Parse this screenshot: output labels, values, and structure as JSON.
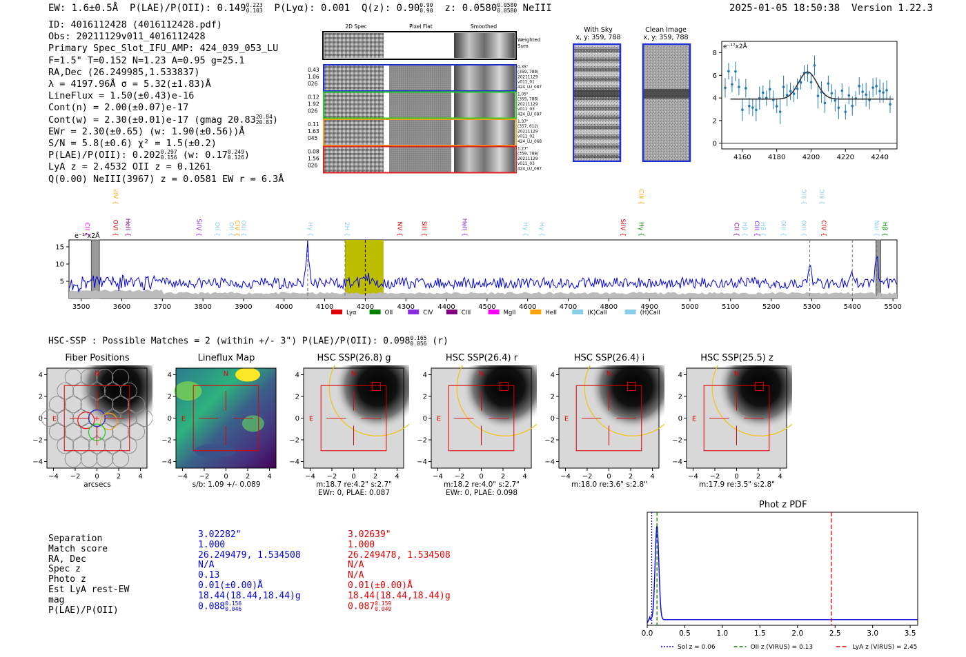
{
  "header": {
    "ew": "EW: 1.6±0.5Å",
    "plae": "P(LAE)/P(OII): 0.149",
    "plae_hi": "0.223",
    "plae_lo": "0.103",
    "plya": "P(Lyα): 0.001",
    "qz": "Q(z): 0.90",
    "qz_hi": "0.90",
    "qz_lo": "0.90",
    "z": "z: 0.0580",
    "z_hi": "0.0580",
    "z_lo": "0.0580",
    "line": "NeIII",
    "datetime": "2025-01-05 18:50:38",
    "version": "Version 1.22.3"
  },
  "info": {
    "id": "ID: 4016112428 (4016112428.pdf)",
    "obs": "Obs: 20211129v011_4016112428",
    "primary": "Primary Spec_Slot_IFU_AMP: 424_039_053_LU",
    "params": "F=1.5\"  T=0.152  N=1.23  A=0.95  g=25.1",
    "radec": "RA,Dec (26.249985,1.533837)",
    "lambda": "λ = 4197.96Å  σ = 5.32(±1.83)Å",
    "lineflux": "LineFlux = 1.50(±0.43)e-16",
    "contn": "Cont(n) = 2.00(±0.07)e-17",
    "contw": "Cont(w) = 2.30(±0.01)e-17 (gmag 20.83",
    "contw_hi": "20.84",
    "contw_lo": "20.83",
    "contw_close": ")",
    "ewr": "EWr = 2.30(±0.65) (w: 1.90(±0.56))Å",
    "sn": "S/N = 5.8(±0.6)  χ² = 1.5(±0.2)",
    "plae": "P(LAE)/P(OII): 0.202",
    "plae_hi": "0.297",
    "plae_lo": "0.156",
    "plae_w": "(w: 0.17",
    "plae_w_hi": "0.249",
    "plae_w_lo": "0.126",
    "plae_w_close": ")",
    "lya": "LyA z = 2.4532  OII z = 0.1261",
    "q": "Q(0.00) NeIII(3967) z = 0.0581  EW r = 6.3Å"
  },
  "cutouts": {
    "col_2d": "2D Spec",
    "col_flat": "Pixel Flat",
    "col_smooth": "Smoothed",
    "weighted": "Weighted Sum",
    "rows": [
      {
        "color": "#1f2fd6",
        "left": [
          "0.43",
          "1.06",
          "026"
        ],
        "right": [
          "0.35\"",
          "(359, 788)",
          "20211129",
          "v011_01",
          "424_LU_087"
        ]
      },
      {
        "color": "#22cc22",
        "left": [
          "0.12",
          "1.92",
          "026"
        ],
        "right": [
          "1.05\"",
          "(359, 788)",
          "20211129",
          "v011_03",
          "424_LU_087"
        ]
      },
      {
        "color": "#f0a020",
        "left": [
          "0.11",
          "1.63",
          "045"
        ],
        "right": [
          "1.37\"",
          "(357, 612)",
          "20211129",
          "v011_02",
          "424_LU_068"
        ]
      },
      {
        "color": "#e02020",
        "left": [
          "0.08",
          "1.56",
          "026"
        ],
        "right": [
          "1.27\"",
          "(359, 788)",
          "20211129",
          "v011_03",
          "424_LU_087"
        ]
      }
    ]
  },
  "sky": {
    "with_sky": "With Sky",
    "with_sky_xy": "x, y: 359, 788",
    "clean": "Clean Image",
    "clean_xy": "x, y: 359, 788"
  },
  "zoom": {
    "unit": "e⁻¹⁷x2Å",
    "xticks": [
      "4160",
      "4180",
      "4200",
      "4220",
      "4240"
    ],
    "yticks": [
      "0",
      "2",
      "4",
      "6",
      "8"
    ]
  },
  "spectrum": {
    "unit": "e⁻¹⁷x2Å",
    "xticks": [
      "3500",
      "3600",
      "3700",
      "3800",
      "3900",
      "4000",
      "4100",
      "4200",
      "4300",
      "4400",
      "4500",
      "4600",
      "4700",
      "4800",
      "4900",
      "5000",
      "5100",
      "5200",
      "5300",
      "5400",
      "5500"
    ],
    "yticks": [
      "5",
      "10",
      "15"
    ],
    "legend": [
      {
        "label": "Lyα",
        "color": "#e00000"
      },
      {
        "label": "OII",
        "color": "#008000"
      },
      {
        "label": "CIV",
        "color": "#8a2be2"
      },
      {
        "label": "CIII",
        "color": "#800080"
      },
      {
        "label": "MgII",
        "color": "#ff00ff"
      },
      {
        "label": "HeII",
        "color": "#ffa500"
      },
      {
        "label": "(K)CaII",
        "color": "#87ceeb"
      },
      {
        "label": "(H)CaII",
        "color": "#87ceeb"
      }
    ],
    "line_labels": [
      {
        "t": "CII",
        "c": "#ff00ff",
        "w": 3510,
        "row": 1
      },
      {
        "t": "SiIV",
        "c": "#ffa500",
        "w": 3580,
        "row": 0
      },
      {
        "t": "OVI",
        "c": "#e00000",
        "w": 3580,
        "row": 1
      },
      {
        "t": "HeII",
        "c": "#800080",
        "w": 3610,
        "row": 1
      },
      {
        "t": "SiIV",
        "c": "#8a2be2",
        "w": 3785,
        "row": 1
      },
      {
        "t": "OII",
        "c": "#87ceeb",
        "w": 3830,
        "row": 1
      },
      {
        "t": "OII",
        "c": "#87ceeb",
        "w": 3865,
        "row": 1
      },
      {
        "t": "CIV",
        "c": "#ffa500",
        "w": 3880,
        "row": 1
      },
      {
        "t": "OIII",
        "c": "#87ceeb",
        "w": 3895,
        "row": 1
      },
      {
        "t": "Hγ",
        "c": "#87ceeb",
        "w": 4060,
        "row": 1
      },
      {
        "t": "2H",
        "c": "#87ceeb",
        "w": 4150,
        "row": 1
      },
      {
        "t": "NV",
        "c": "#e00000",
        "w": 4280,
        "row": 1
      },
      {
        "t": "SiII",
        "c": "#e00000",
        "w": 4340,
        "row": 1
      },
      {
        "t": "HeII",
        "c": "#8a2be2",
        "w": 4440,
        "row": 1
      },
      {
        "t": "Hγ",
        "c": "#87ceeb",
        "w": 4590,
        "row": 1
      },
      {
        "t": "Hγ",
        "c": "#87ceeb",
        "w": 4630,
        "row": 1
      },
      {
        "t": "SiIV",
        "c": "#e00000",
        "w": 4830,
        "row": 1
      },
      {
        "t": "Hγ",
        "c": "#008000",
        "w": 4875,
        "row": 1
      },
      {
        "t": "CIII",
        "c": "#ffa500",
        "w": 4875,
        "row": 0
      },
      {
        "t": "CII",
        "c": "#800080",
        "w": 5110,
        "row": 1
      },
      {
        "t": "Hβ",
        "c": "#87ceeb",
        "w": 5130,
        "row": 1
      },
      {
        "t": "CIII",
        "c": "#8a2be2",
        "w": 5160,
        "row": 1
      },
      {
        "t": "Hβ",
        "c": "#87ceeb",
        "w": 5175,
        "row": 1
      },
      {
        "t": "OIII",
        "c": "#87ceeb",
        "w": 5225,
        "row": 1
      },
      {
        "t": "OIII",
        "c": "#87ceeb",
        "w": 5275,
        "row": 1
      },
      {
        "t": "OIII",
        "c": "#87ceeb",
        "w": 5275,
        "row": 0
      },
      {
        "t": "OIII",
        "c": "#87ceeb",
        "w": 5320,
        "row": 0
      },
      {
        "t": "CIV",
        "c": "#e00000",
        "w": 5325,
        "row": 1
      },
      {
        "t": "NaI",
        "c": "#87ceeb",
        "w": 5455,
        "row": 1
      },
      {
        "t": "Hβ",
        "c": "#008000",
        "w": 5475,
        "row": 1
      }
    ]
  },
  "hsc": {
    "summary": "HSC-SSP : Possible Matches = 2 (within +/- 3\")  P(LAE)/P(OII): 0.098",
    "summary_hi": "0.165",
    "summary_lo": "0.056",
    "summary_tail": "(r)",
    "panels": [
      {
        "title": "Fiber Positions",
        "cap1": "arcsecs",
        "cap2": ""
      },
      {
        "title": "Lineflux Map",
        "cap1": "s/b: 1.09 +/- 0.089",
        "cap2": ""
      },
      {
        "title": "HSC SSP(26.8) g",
        "cap1": "m:18.7  re:4.2\"  s:2.7\"",
        "cap2": "EWr: 0, PLAE: 0.087"
      },
      {
        "title": "HSC SSP(26.4) r",
        "cap1": "m:18.2  re:4.0\"  s:2.7\"",
        "cap2": "EWr: 0, PLAE: 0.098"
      },
      {
        "title": "HSC SSP(26.4) i",
        "cap1": "m:18.0  re:3.6\"  s:2.8\"",
        "cap2": ""
      },
      {
        "title": "HSC SSP(25.5) z",
        "cap1": "m:17.9  re:3.5\"  s:2.8\"",
        "cap2": ""
      }
    ],
    "axticks": [
      "−4",
      "−2",
      "0",
      "2",
      "4"
    ],
    "labels": {
      "n": "N",
      "e": "E"
    }
  },
  "matches": {
    "labels": [
      "Separation",
      "Match score",
      "RA, Dec",
      "Spec z",
      "Photo z",
      "Est LyA rest-EW",
      "mag",
      "P(LAE)/P(OII)"
    ],
    "m1": {
      "sep": "3.02282\"",
      "score": "1.000",
      "radec": "26.249479, 1.534508",
      "specz": "N/A",
      "photz": "0.13",
      "ew": "0.01(±0.00)Å",
      "mag": "18.44(18.44,18.44)g",
      "plae": "0.088",
      "plae_hi": "0.156",
      "plae_lo": "0.046"
    },
    "m2": {
      "sep": "3.02639\"",
      "score": "1.000",
      "radec": "26.249478, 1.534508",
      "specz": "N/A",
      "photz": "N/A",
      "ew": "0.01(±0.00)Å",
      "mag": "18.44(18.44,18.44)g",
      "plae": "0.087",
      "plae_hi": "0.159",
      "plae_lo": "0.049"
    }
  },
  "photz": {
    "title": "Phot z PDF",
    "xticks": [
      "0.0",
      "0.5",
      "1.0",
      "1.5",
      "2.0",
      "2.5",
      "3.0",
      "3.5"
    ],
    "legend": [
      {
        "label": "Sol z = 0.06",
        "color": "#0000e0"
      },
      {
        "label": "OII z (VIRUS) = 0.13",
        "color": "#008000"
      },
      {
        "label": "LyA z (VIRUS) = 2.45",
        "color": "#e00000"
      }
    ],
    "chart_data": {
      "type": "line",
      "x_peak": 0.13,
      "sol_z": 0.06,
      "oii_z": 0.13,
      "lya_z": 2.45,
      "xlim": [
        0,
        3.6
      ]
    }
  },
  "chart_data": [
    {
      "type": "line",
      "title": "zoom spectrum",
      "xlabel": "",
      "ylabel": "e-17x2Å",
      "xlim": [
        4148,
        4250
      ],
      "ylim": [
        -0.5,
        9
      ],
      "gauss": {
        "center": 4198,
        "sigma": 5.3,
        "amp": 2.4,
        "cont": 3.9,
        "xmin": 4153,
        "xmax": 4248
      }
    },
    {
      "type": "line",
      "title": "full spectrum",
      "xlim": [
        3470,
        5510
      ],
      "ylim": [
        0,
        17
      ],
      "highlight": [
        4150,
        4245
      ],
      "peaks": [
        {
          "x": 4058,
          "y": 15.8
        },
        {
          "x": 5295,
          "y": 9.5
        },
        {
          "x": 5400,
          "y": 7.0
        },
        {
          "x": 5460,
          "y": 12.5
        }
      ]
    }
  ]
}
